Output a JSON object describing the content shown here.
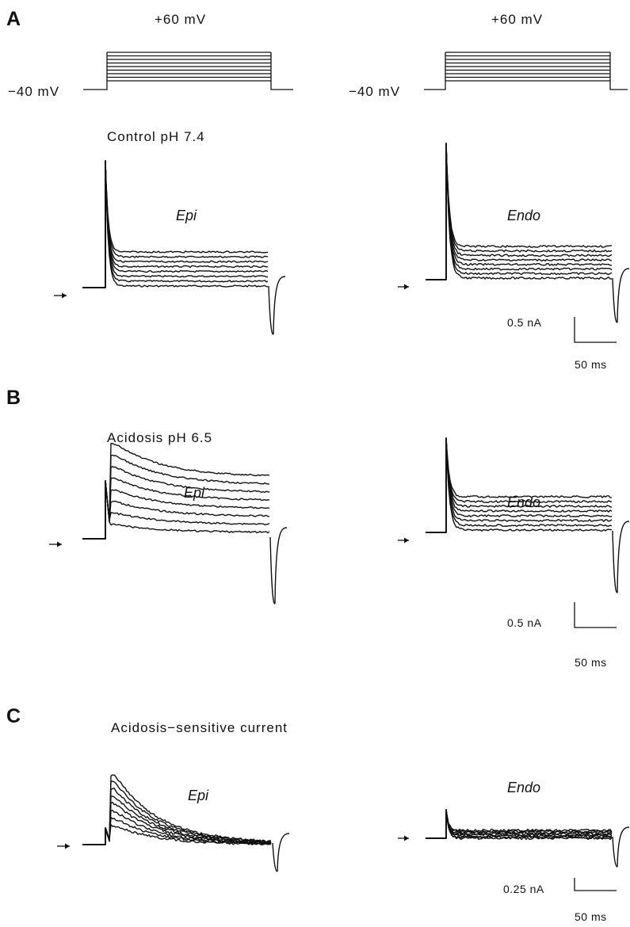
{
  "figure": {
    "panels": {
      "A": "A",
      "B": "B",
      "C": "C"
    },
    "protocol": {
      "step_label": "+60 mV",
      "holding_label": "−40 mV",
      "steps": 9
    },
    "conditions": {
      "control": "Control pH 7.4",
      "acidosis": "Acidosis pH 6.5",
      "sensitive": "Acidosis−sensitive current"
    },
    "cells": {
      "epi": "Epi",
      "endo": "Endo"
    },
    "scale_bars": {
      "current_A": "0.5 nA",
      "current_B": "0.5 nA",
      "current_C": "0.25 nA",
      "time": "50 ms"
    },
    "arrow_glyph": "→"
  }
}
